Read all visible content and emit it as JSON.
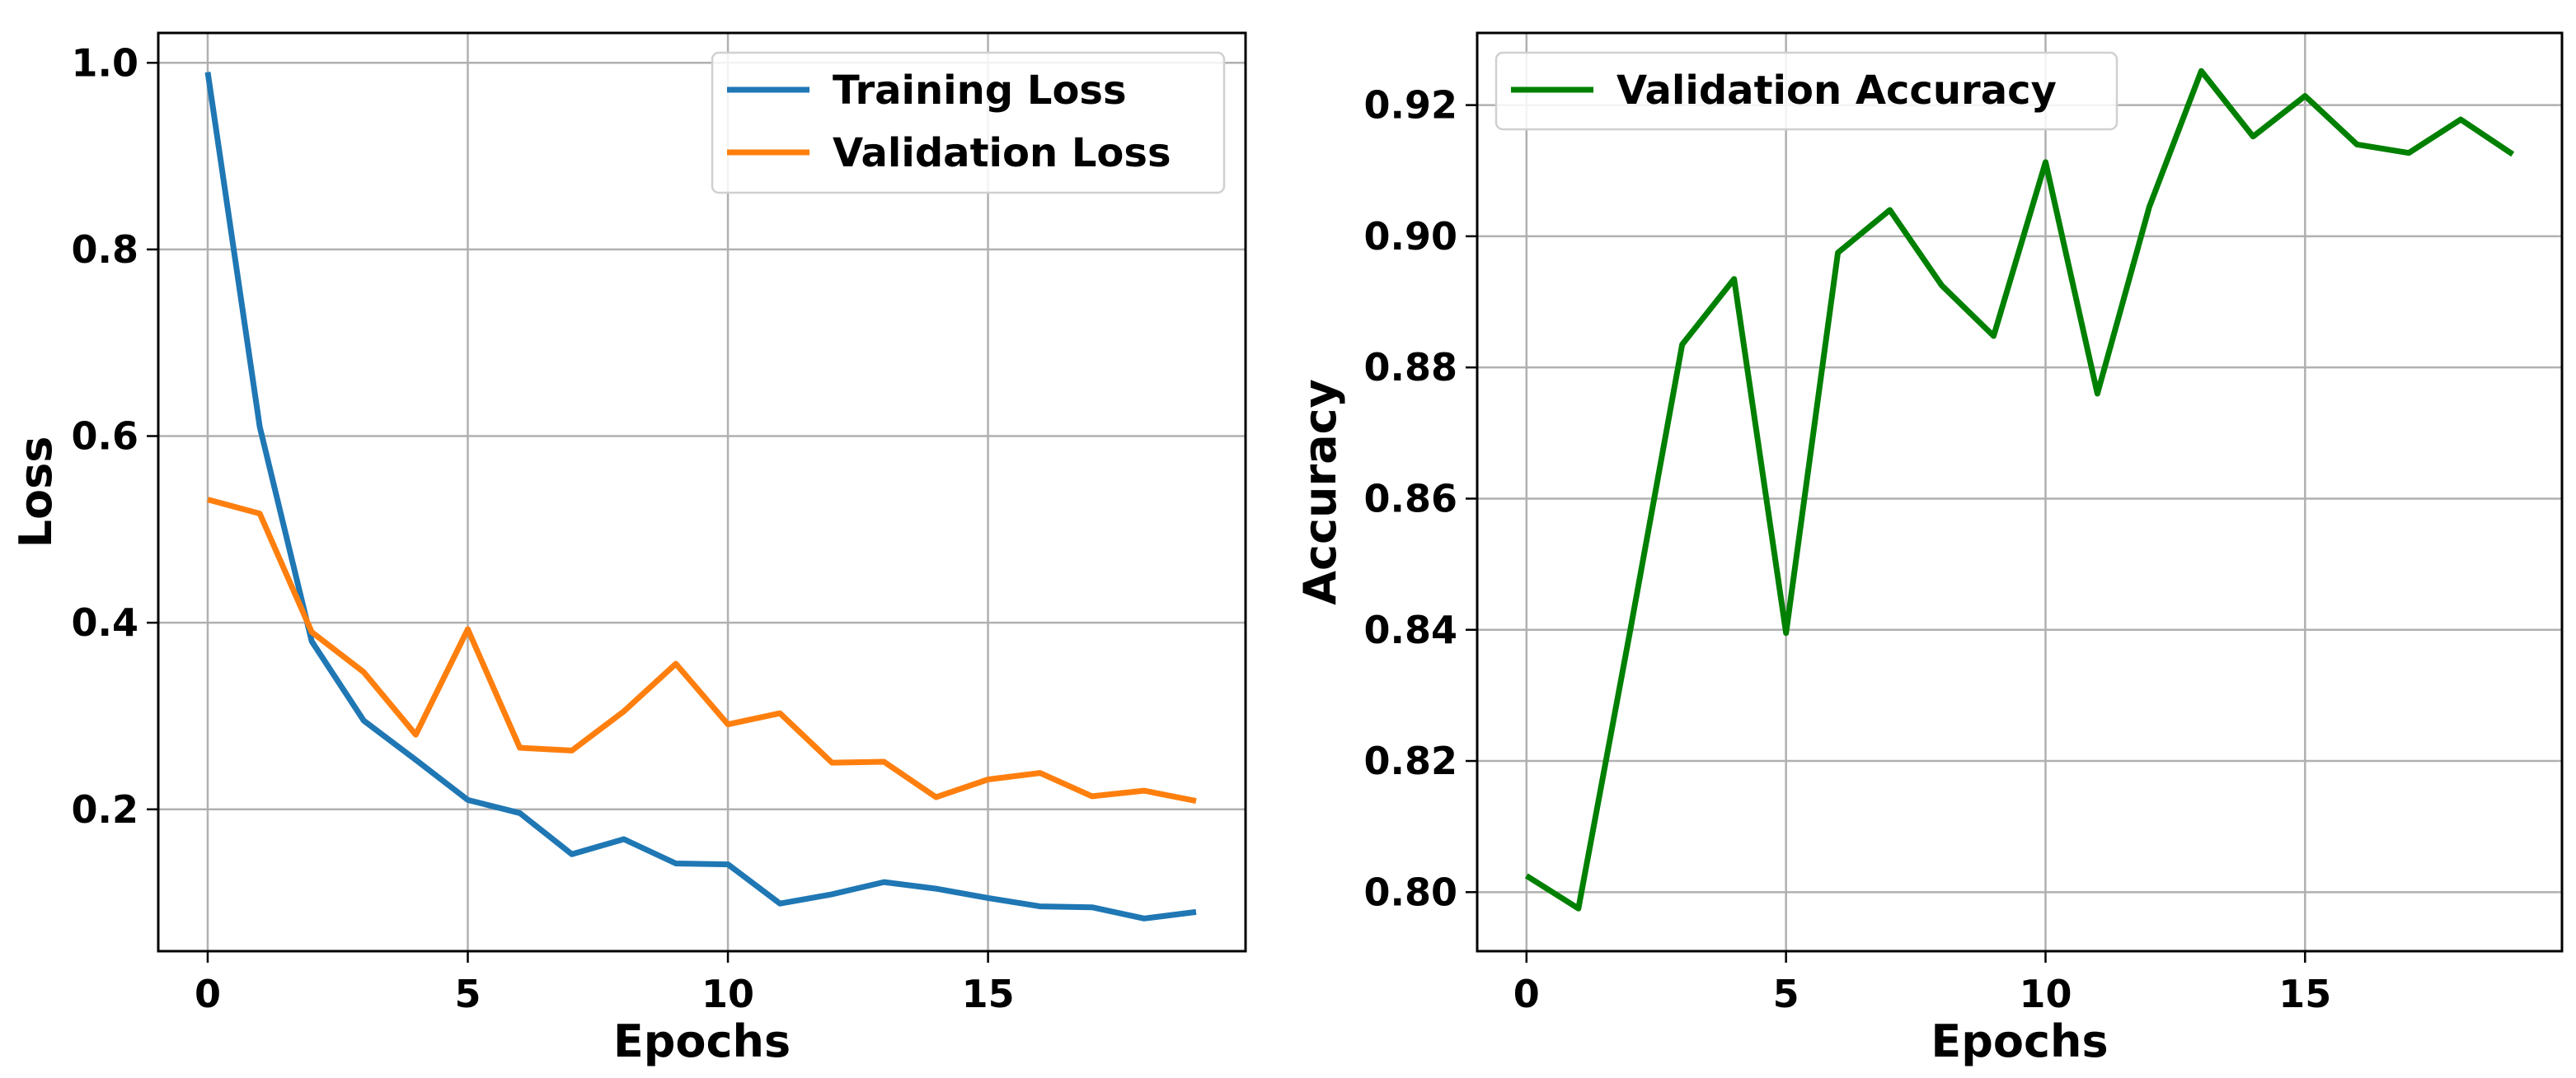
{
  "chart_data": [
    {
      "type": "line",
      "title": "",
      "xlabel": "Epochs",
      "ylabel": "Loss",
      "xlim": [
        -0.95,
        19.95
      ],
      "ylim": [
        0.048,
        1.032
      ],
      "xticks": [
        0,
        5,
        10,
        15
      ],
      "xtick_labels": [
        "0",
        "5",
        "10",
        "15"
      ],
      "yticks": [
        0.2,
        0.4,
        0.6,
        0.8,
        1.0
      ],
      "ytick_labels": [
        "0.2",
        "0.4",
        "0.6",
        "0.8",
        "1.0"
      ],
      "grid": true,
      "legend_position": "top-right",
      "x": [
        0,
        1,
        2,
        3,
        4,
        5,
        6,
        7,
        8,
        9,
        10,
        11,
        12,
        13,
        14,
        15,
        16,
        17,
        18,
        19
      ],
      "series": [
        {
          "name": "Training Loss",
          "color": "#1f77b4",
          "values": [
            0.99,
            0.61,
            0.38,
            0.295,
            0.253,
            0.21,
            0.196,
            0.152,
            0.168,
            0.142,
            0.141,
            0.099,
            0.109,
            0.122,
            0.115,
            0.105,
            0.096,
            0.095,
            0.083,
            0.09
          ]
        },
        {
          "name": "Validation Loss",
          "color": "#ff7f0e",
          "values": [
            0.532,
            0.517,
            0.39,
            0.347,
            0.28,
            0.393,
            0.266,
            0.263,
            0.305,
            0.356,
            0.291,
            0.303,
            0.25,
            0.251,
            0.213,
            0.232,
            0.239,
            0.214,
            0.22,
            0.209
          ]
        }
      ]
    },
    {
      "type": "line",
      "title": "",
      "xlabel": "Epochs",
      "ylabel": "Accuracy",
      "xlim": [
        -0.95,
        19.95
      ],
      "ylim": [
        0.791,
        0.931
      ],
      "xticks": [
        0,
        5,
        10,
        15
      ],
      "xtick_labels": [
        "0",
        "5",
        "10",
        "15"
      ],
      "yticks": [
        0.8,
        0.82,
        0.84,
        0.86,
        0.88,
        0.9,
        0.92
      ],
      "ytick_labels": [
        "0.80",
        "0.82",
        "0.84",
        "0.86",
        "0.88",
        "0.90",
        "0.92"
      ],
      "grid": true,
      "legend_position": "top-left",
      "x": [
        0,
        1,
        2,
        3,
        4,
        5,
        6,
        7,
        8,
        9,
        10,
        11,
        12,
        13,
        14,
        15,
        16,
        17,
        18,
        19
      ],
      "series": [
        {
          "name": "Validation Accuracy",
          "color": "#008000",
          "values": [
            0.8025,
            0.7975,
            0.84,
            0.8835,
            0.8935,
            0.8395,
            0.8975,
            0.904,
            0.8925,
            0.8848,
            0.9113,
            0.876,
            0.9045,
            0.9252,
            0.9152,
            0.9214,
            0.914,
            0.9127,
            0.9178,
            0.9125
          ]
        }
      ]
    }
  ]
}
